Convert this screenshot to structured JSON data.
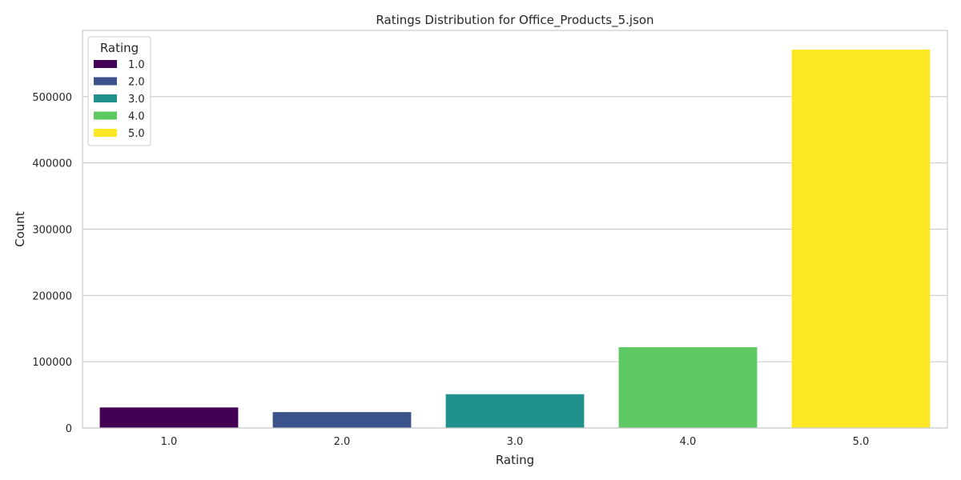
{
  "chart_data": {
    "type": "bar",
    "title": "Ratings Distribution for Office_Products_5.json",
    "xlabel": "Rating",
    "ylabel": "Count",
    "categories": [
      "1.0",
      "2.0",
      "3.0",
      "4.0",
      "5.0"
    ],
    "values": [
      31000,
      24000,
      51000,
      122000,
      571000
    ],
    "colors": [
      "#440154",
      "#3b528b",
      "#21918c",
      "#5ec962",
      "#fde725"
    ],
    "ylim": [
      0,
      600000
    ],
    "yticks": [
      0,
      100000,
      200000,
      300000,
      400000,
      500000
    ],
    "ytick_labels": [
      "0",
      "100000",
      "200000",
      "300000",
      "400000",
      "500000"
    ],
    "grid": "horizontal",
    "legend": {
      "title": "Rating",
      "placement": "top-left",
      "entries": [
        "1.0",
        "2.0",
        "3.0",
        "4.0",
        "5.0"
      ]
    }
  }
}
